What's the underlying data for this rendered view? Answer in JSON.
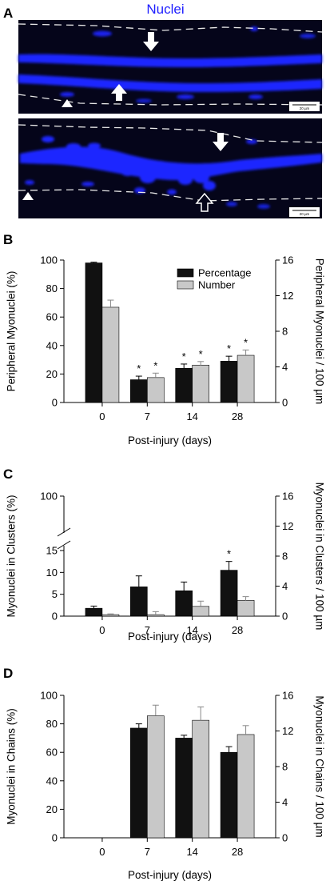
{
  "figure": {
    "panel_a": {
      "label": "A",
      "title": "Nuclei",
      "scale_bar_label": "20 µm",
      "colors": {
        "background": "#05051a",
        "nuclei": "#1e28ff",
        "dash": "#e8e8e8"
      }
    }
  },
  "chart_data": [
    {
      "panel": "B",
      "type": "bar",
      "categories": [
        "0",
        "7",
        "14",
        "28"
      ],
      "xlabel": "Post-injury (days)",
      "ylabel": "Peripheral Myonuclei (%)",
      "ylabel_right": "Peripheral Myonuclei / 100 µm",
      "ylim": [
        0,
        100
      ],
      "ylim_right": [
        0,
        16
      ],
      "yticks": [
        "0",
        "20",
        "40",
        "60",
        "80",
        "100"
      ],
      "yticks_right": [
        "0",
        "4",
        "8",
        "12",
        "16"
      ],
      "legend": {
        "position": "top-right",
        "entries": [
          "Percentage",
          "Number"
        ]
      },
      "series": [
        {
          "name": "Percentage",
          "axis": "left",
          "color": "#111111",
          "values": [
            98,
            16,
            24,
            29
          ],
          "errors": [
            0.5,
            2.5,
            3,
            3.5
          ],
          "stars": [
            false,
            true,
            true,
            true
          ]
        },
        {
          "name": "Number",
          "axis": "right",
          "color": "#c8c8c8",
          "values": [
            10.7,
            2.8,
            4.2,
            5.3
          ],
          "errors": [
            0.8,
            0.5,
            0.4,
            0.6
          ],
          "stars": [
            false,
            true,
            true,
            true
          ]
        }
      ]
    },
    {
      "panel": "C",
      "type": "bar",
      "categories": [
        "0",
        "7",
        "14",
        "28"
      ],
      "xlabel": "Post-injury (days)",
      "ylabel": "Myonuclei in Clusters (%)",
      "ylabel_right": "Myonuclei in Clusters / 100 µm",
      "ylim": [
        0,
        100
      ],
      "y_axis_break": [
        15,
        100
      ],
      "ylim_right": [
        0,
        16
      ],
      "yticks": [
        "0",
        "5",
        "10",
        "15",
        "100"
      ],
      "yticks_right": [
        "0",
        "4",
        "8",
        "12",
        "16"
      ],
      "series": [
        {
          "name": "Percentage",
          "axis": "left",
          "color": "#111111",
          "values": [
            1.8,
            6.7,
            5.8,
            10.5
          ],
          "errors": [
            0.5,
            2.5,
            2.0,
            2.0
          ],
          "stars": [
            false,
            false,
            false,
            true
          ]
        },
        {
          "name": "Number",
          "axis": "right",
          "color": "#c8c8c8",
          "values": [
            0.2,
            0.2,
            1.3,
            2.1
          ],
          "errors": [
            0.1,
            0.4,
            0.7,
            0.5
          ],
          "stars": [
            false,
            false,
            false,
            false
          ]
        }
      ]
    },
    {
      "panel": "D",
      "type": "bar",
      "categories": [
        "0",
        "7",
        "14",
        "28"
      ],
      "xlabel": "Post-injury (days)",
      "ylabel": "Myonuclei in Chains (%)",
      "ylabel_right": "Myonuclei in Chains / 100 µm",
      "ylim": [
        0,
        100
      ],
      "ylim_right": [
        0,
        16
      ],
      "yticks": [
        "0",
        "20",
        "40",
        "60",
        "80",
        "100"
      ],
      "yticks_right": [
        "0",
        "4",
        "8",
        "12",
        "16"
      ],
      "series": [
        {
          "name": "Percentage",
          "axis": "left",
          "color": "#111111",
          "values": [
            0,
            77,
            70,
            60
          ],
          "errors": [
            0,
            3,
            2,
            4
          ],
          "stars": [
            false,
            false,
            false,
            false
          ]
        },
        {
          "name": "Number",
          "axis": "right",
          "color": "#c8c8c8",
          "values": [
            0,
            13.7,
            13.2,
            11.6
          ],
          "errors": [
            0,
            1.2,
            1.5,
            1.0
          ],
          "stars": [
            false,
            false,
            false,
            false
          ]
        }
      ]
    }
  ]
}
